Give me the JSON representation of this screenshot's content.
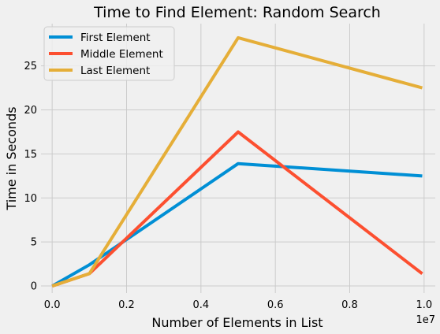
{
  "chart_data": {
    "type": "line",
    "title": "Time to Find Element: Random Search",
    "xlabel": "Number of Elements in List",
    "ylabel": "Time in Seconds",
    "x_offset_label": "1e7",
    "x": [
      0,
      1000000,
      5000000,
      9950000
    ],
    "xlim": [
      -300000,
      10300000
    ],
    "ylim": [
      -0.8,
      29.8
    ],
    "x_ticks": [
      0,
      2000000,
      4000000,
      6000000,
      8000000,
      10000000
    ],
    "x_tick_labels": [
      "0.0",
      "0.2",
      "0.4",
      "0.6",
      "0.8",
      "1.0"
    ],
    "y_ticks": [
      0,
      5,
      10,
      15,
      20,
      25
    ],
    "y_tick_labels": [
      "0",
      "5",
      "10",
      "15",
      "20",
      "25"
    ],
    "grid": true,
    "legend_position": "top-left",
    "series": [
      {
        "name": "First Element",
        "color": "#008fd5",
        "values": [
          0.0,
          2.4,
          13.9,
          12.5
        ]
      },
      {
        "name": "Middle Element",
        "color": "#fc4f30",
        "values": [
          0.0,
          1.4,
          17.5,
          1.4
        ]
      },
      {
        "name": "Last Element",
        "color": "#e5ae38",
        "values": [
          0.0,
          1.4,
          28.2,
          22.5
        ]
      }
    ]
  }
}
